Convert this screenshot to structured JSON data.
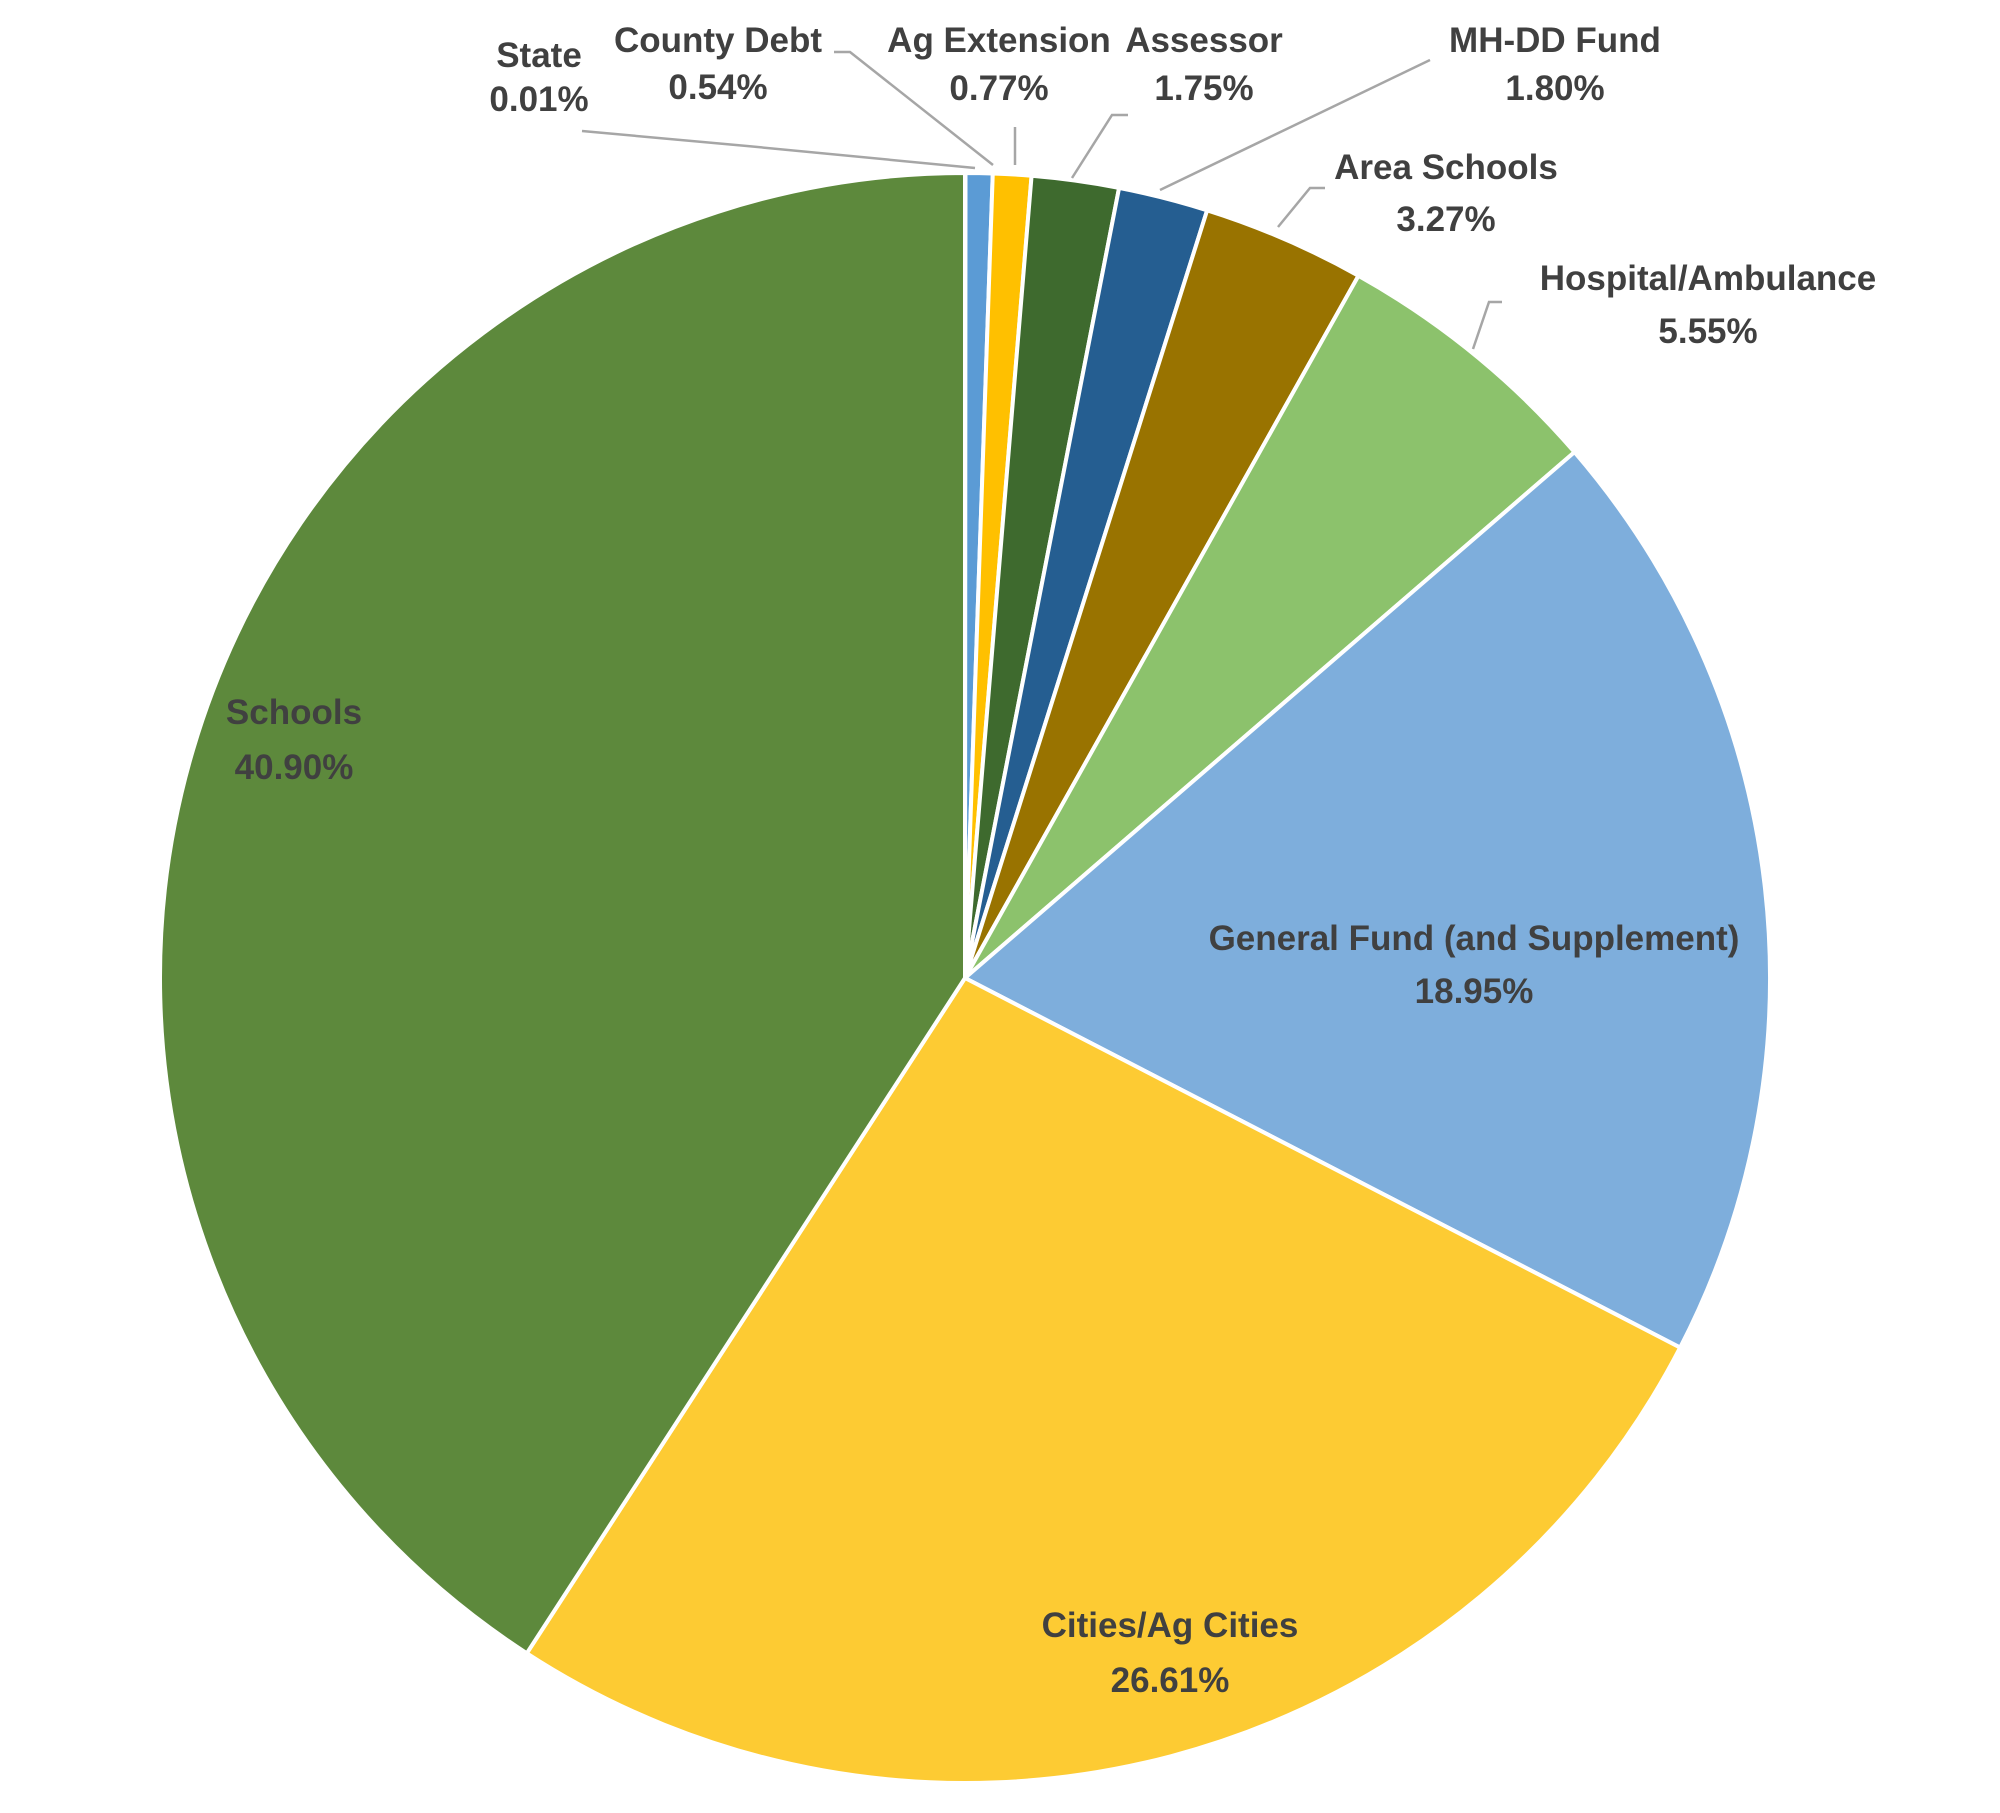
{
  "chart_data": {
    "type": "pie",
    "title": "",
    "slices": [
      {
        "label": "State",
        "value": 0.01,
        "value_label": "0.01%",
        "color": "#5b9bd5"
      },
      {
        "label": "County Debt",
        "value": 0.54,
        "value_label": "0.54%",
        "color": "#5b9bd5"
      },
      {
        "label": "Ag Extension",
        "value": 0.77,
        "value_label": "0.77%",
        "color": "#ffc000"
      },
      {
        "label": "Assessor",
        "value": 1.75,
        "value_label": "1.75%",
        "color": "#3e6a2e"
      },
      {
        "label": "MH-DD Fund",
        "value": 1.8,
        "value_label": "1.80%",
        "color": "#255e91"
      },
      {
        "label": "Area Schools",
        "value": 3.27,
        "value_label": "3.27%",
        "color": "#997300"
      },
      {
        "label": "Hospital/Ambulance",
        "value": 5.55,
        "value_label": "5.55%",
        "color": "#8cc26c"
      },
      {
        "label": "General Fund (and Supplement)",
        "value": 18.95,
        "value_label": "18.95%",
        "color": "#7eaedc"
      },
      {
        "label": "Cities/Ag Cities",
        "value": 26.61,
        "value_label": "26.61%",
        "color": "#fdcb33"
      },
      {
        "label": "Schools",
        "value": 40.9,
        "value_label": "40.90%",
        "color": "#5d893c"
      }
    ],
    "start_angle": "12 o'clock",
    "direction": "clockwise",
    "legend": "none",
    "data_labels": "category name and percentage"
  }
}
